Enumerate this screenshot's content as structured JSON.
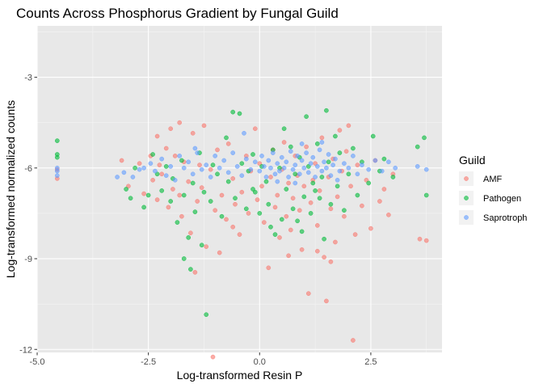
{
  "chart_data": {
    "type": "scatter",
    "title": "Counts Across Phosphorus Gradient by Fungal Guild",
    "xlabel": "Log-transformed Resin P",
    "ylabel": "Log-transformed normalized counts",
    "xlim": [
      -5.0,
      4.1
    ],
    "ylim": [
      -12.1,
      -1.3
    ],
    "x_ticks": [
      -5.0,
      -2.5,
      0.0,
      2.5
    ],
    "x_tick_labels": [
      "-5.0",
      "-2.5",
      "0.0",
      "2.5"
    ],
    "y_ticks": [
      -12,
      -9,
      -6,
      -3
    ],
    "y_tick_labels": [
      "-12",
      "-9",
      "-6",
      "-3"
    ],
    "grid": true,
    "panel_background": "#e8e8e8",
    "legend": {
      "title": "Guild",
      "position": "right"
    },
    "series": [
      {
        "name": "AMF",
        "color": "#f8766d",
        "points": [
          [
            -4.55,
            -6.35
          ],
          [
            -4.55,
            -6.05
          ],
          [
            -3.1,
            -5.75
          ],
          [
            -2.95,
            -6.6
          ],
          [
            -2.7,
            -5.85
          ],
          [
            -2.6,
            -6.85
          ],
          [
            -2.45,
            -5.6
          ],
          [
            -2.4,
            -6.4
          ],
          [
            -2.3,
            -4.95
          ],
          [
            -2.3,
            -7.05
          ],
          [
            -2.25,
            -5.9
          ],
          [
            -2.2,
            -6.2
          ],
          [
            -2.1,
            -5.35
          ],
          [
            -2.05,
            -7.3
          ],
          [
            -2.0,
            -4.7
          ],
          [
            -1.95,
            -6.7
          ],
          [
            -1.9,
            -5.6
          ],
          [
            -1.8,
            -4.5
          ],
          [
            -1.8,
            -6.9
          ],
          [
            -1.75,
            -7.6
          ],
          [
            -1.7,
            -5.8
          ],
          [
            -1.6,
            -6.45
          ],
          [
            -1.55,
            -8.15
          ],
          [
            -1.5,
            -4.85
          ],
          [
            -1.4,
            -7.1
          ],
          [
            -1.35,
            -5.9
          ],
          [
            -1.3,
            -6.65
          ],
          [
            -1.25,
            -4.6
          ],
          [
            -1.2,
            -8.6
          ],
          [
            -1.1,
            -6.05
          ],
          [
            -1.0,
            -7.4
          ],
          [
            -0.95,
            -5.4
          ],
          [
            -0.9,
            -8.8
          ],
          [
            -0.85,
            -6.9
          ],
          [
            -0.75,
            -7.7
          ],
          [
            -0.7,
            -5.2
          ],
          [
            -0.6,
            -6.35
          ],
          [
            -0.55,
            -7.2
          ],
          [
            -0.45,
            -8.2
          ],
          [
            -0.4,
            -6.8
          ],
          [
            -0.3,
            -5.6
          ],
          [
            -0.25,
            -7.5
          ],
          [
            -0.2,
            -6.1
          ],
          [
            -0.1,
            -4.7
          ],
          [
            -0.05,
            -7.05
          ],
          [
            0.0,
            -5.85
          ],
          [
            0.05,
            -6.6
          ],
          [
            0.1,
            -7.8
          ],
          [
            0.2,
            -9.3
          ],
          [
            0.25,
            -6.3
          ],
          [
            0.3,
            -5.4
          ],
          [
            0.35,
            -7.3
          ],
          [
            0.4,
            -6.9
          ],
          [
            0.45,
            -8.3
          ],
          [
            0.5,
            -6.05
          ],
          [
            0.55,
            -5.15
          ],
          [
            0.6,
            -7.6
          ],
          [
            0.65,
            -6.5
          ],
          [
            0.7,
            -8.05
          ],
          [
            0.75,
            -7.0
          ],
          [
            0.8,
            -5.6
          ],
          [
            0.85,
            -6.25
          ],
          [
            0.9,
            -7.4
          ],
          [
            0.95,
            -8.7
          ],
          [
            1.0,
            -6.6
          ],
          [
            1.05,
            -5.3
          ],
          [
            1.1,
            -10.15
          ],
          [
            1.15,
            -7.15
          ],
          [
            1.2,
            -6.4
          ],
          [
            1.25,
            -5.85
          ],
          [
            1.3,
            -7.9
          ],
          [
            1.35,
            -6.75
          ],
          [
            1.4,
            -5.0
          ],
          [
            1.45,
            -8.95
          ],
          [
            1.5,
            -10.4
          ],
          [
            1.55,
            -6.3
          ],
          [
            1.6,
            -7.35
          ],
          [
            1.65,
            -5.7
          ],
          [
            1.7,
            -8.45
          ],
          [
            1.75,
            -6.95
          ],
          [
            1.8,
            -4.75
          ],
          [
            1.85,
            -6.1
          ],
          [
            1.9,
            -7.6
          ],
          [
            1.95,
            -5.45
          ],
          [
            2.0,
            -4.6
          ],
          [
            2.05,
            -6.6
          ],
          [
            2.1,
            -11.7
          ],
          [
            2.15,
            -8.2
          ],
          [
            2.2,
            -5.9
          ],
          [
            2.3,
            -7.25
          ],
          [
            2.4,
            -6.4
          ],
          [
            2.5,
            -8.0
          ],
          [
            2.6,
            -5.75
          ],
          [
            2.7,
            -7.1
          ],
          [
            2.8,
            -6.7
          ],
          [
            2.9,
            -7.55
          ],
          [
            3.0,
            -6.2
          ],
          [
            3.6,
            -8.35
          ],
          [
            3.75,
            -8.4
          ],
          [
            -1.05,
            -12.25
          ],
          [
            -1.45,
            -9.45
          ],
          [
            0.65,
            -8.9
          ],
          [
            1.3,
            -8.75
          ],
          [
            -0.6,
            -7.95
          ],
          [
            1.6,
            -9.1
          ]
        ]
      },
      {
        "name": "Pathogen",
        "color": "#00ba38",
        "points": [
          [
            -4.55,
            -5.1
          ],
          [
            -4.55,
            -5.55
          ],
          [
            -4.55,
            -5.65
          ],
          [
            -3.0,
            -6.7
          ],
          [
            -2.9,
            -7.0
          ],
          [
            -2.8,
            -6.0
          ],
          [
            -2.6,
            -7.3
          ],
          [
            -2.5,
            -6.9
          ],
          [
            -2.4,
            -5.55
          ],
          [
            -2.3,
            -6.2
          ],
          [
            -2.2,
            -6.75
          ],
          [
            -2.1,
            -5.95
          ],
          [
            -2.0,
            -7.1
          ],
          [
            -1.95,
            -6.35
          ],
          [
            -1.85,
            -7.8
          ],
          [
            -1.75,
            -5.75
          ],
          [
            -1.7,
            -6.9
          ],
          [
            -1.6,
            -8.3
          ],
          [
            -1.5,
            -6.5
          ],
          [
            -1.45,
            -7.45
          ],
          [
            -1.35,
            -5.5
          ],
          [
            -1.3,
            -8.55
          ],
          [
            -1.25,
            -6.8
          ],
          [
            -1.2,
            -10.85
          ],
          [
            -1.1,
            -7.1
          ],
          [
            -1.05,
            -5.9
          ],
          [
            -0.95,
            -6.2
          ],
          [
            -0.85,
            -7.6
          ],
          [
            -0.75,
            -5.0
          ],
          [
            -0.7,
            -6.45
          ],
          [
            -0.6,
            -4.15
          ],
          [
            -0.55,
            -7.0
          ],
          [
            -0.45,
            -4.2
          ],
          [
            -0.4,
            -5.85
          ],
          [
            -0.3,
            -7.35
          ],
          [
            -0.25,
            -6.1
          ],
          [
            -0.15,
            -5.55
          ],
          [
            -0.1,
            -6.8
          ],
          [
            0.0,
            -7.5
          ],
          [
            0.05,
            -5.95
          ],
          [
            0.15,
            -6.45
          ],
          [
            0.2,
            -7.2
          ],
          [
            0.3,
            -5.4
          ],
          [
            0.35,
            -8.2
          ],
          [
            0.45,
            -6.0
          ],
          [
            0.5,
            -7.7
          ],
          [
            0.55,
            -4.7
          ],
          [
            0.6,
            -6.7
          ],
          [
            0.7,
            -5.3
          ],
          [
            0.75,
            -7.35
          ],
          [
            0.8,
            -6.2
          ],
          [
            0.9,
            -5.65
          ],
          [
            0.95,
            -8.1
          ],
          [
            1.0,
            -6.95
          ],
          [
            1.05,
            -4.3
          ],
          [
            1.1,
            -5.95
          ],
          [
            1.15,
            -7.5
          ],
          [
            1.2,
            -6.5
          ],
          [
            1.3,
            -5.2
          ],
          [
            1.35,
            -7.0
          ],
          [
            1.4,
            -6.3
          ],
          [
            1.45,
            -8.35
          ],
          [
            1.5,
            -4.1
          ],
          [
            1.55,
            -5.8
          ],
          [
            1.6,
            -7.2
          ],
          [
            1.7,
            -4.95
          ],
          [
            1.75,
            -6.6
          ],
          [
            1.8,
            -5.5
          ],
          [
            1.9,
            -7.4
          ],
          [
            2.0,
            -6.2
          ],
          [
            2.1,
            -5.35
          ],
          [
            2.2,
            -6.9
          ],
          [
            2.3,
            -5.8
          ],
          [
            2.45,
            -6.5
          ],
          [
            2.55,
            -4.95
          ],
          [
            2.7,
            -6.1
          ],
          [
            2.8,
            -5.7
          ],
          [
            3.0,
            -6.3
          ],
          [
            3.55,
            -5.3
          ],
          [
            3.7,
            -5.0
          ],
          [
            3.75,
            -6.9
          ],
          [
            -1.7,
            -9.0
          ],
          [
            -1.55,
            -9.35
          ],
          [
            0.25,
            -7.95
          ],
          [
            0.85,
            -7.75
          ],
          [
            -0.15,
            -6.7
          ],
          [
            1.25,
            -6.75
          ]
        ]
      },
      {
        "name": "Saprotroph",
        "color": "#619cff",
        "points": [
          [
            -4.55,
            -6.0
          ],
          [
            -4.55,
            -6.25
          ],
          [
            -4.55,
            -6.1
          ],
          [
            -3.2,
            -6.3
          ],
          [
            -3.05,
            -6.15
          ],
          [
            -2.85,
            -6.3
          ],
          [
            -2.7,
            -6.05
          ],
          [
            -2.6,
            -6.0
          ],
          [
            -2.45,
            -5.85
          ],
          [
            -2.35,
            -6.1
          ],
          [
            -2.2,
            -5.7
          ],
          [
            -2.1,
            -6.25
          ],
          [
            -2.0,
            -5.95
          ],
          [
            -1.9,
            -6.4
          ],
          [
            -1.8,
            -5.6
          ],
          [
            -1.7,
            -6.0
          ],
          [
            -1.6,
            -5.8
          ],
          [
            -1.5,
            -6.2
          ],
          [
            -1.4,
            -5.5
          ],
          [
            -1.3,
            -6.05
          ],
          [
            -1.2,
            -5.9
          ],
          [
            -1.1,
            -6.3
          ],
          [
            -1.0,
            -5.6
          ],
          [
            -0.9,
            -6.0
          ],
          [
            -0.8,
            -5.75
          ],
          [
            -0.7,
            -6.15
          ],
          [
            -0.6,
            -5.5
          ],
          [
            -0.5,
            -5.95
          ],
          [
            -0.4,
            -6.25
          ],
          [
            -0.3,
            -5.7
          ],
          [
            -0.2,
            -6.05
          ],
          [
            -0.1,
            -5.8
          ],
          [
            0.0,
            -6.1
          ],
          [
            0.05,
            -5.6
          ],
          [
            0.1,
            -5.95
          ],
          [
            0.15,
            -6.3
          ],
          [
            0.2,
            -5.75
          ],
          [
            0.25,
            -6.0
          ],
          [
            0.3,
            -5.5
          ],
          [
            0.35,
            -6.2
          ],
          [
            0.4,
            -5.85
          ],
          [
            0.45,
            -6.1
          ],
          [
            0.5,
            -5.65
          ],
          [
            0.55,
            -6.0
          ],
          [
            0.6,
            -5.8
          ],
          [
            0.65,
            -6.3
          ],
          [
            0.7,
            -5.45
          ],
          [
            0.75,
            -6.05
          ],
          [
            0.8,
            -5.9
          ],
          [
            0.85,
            -5.6
          ],
          [
            0.9,
            -6.2
          ],
          [
            0.95,
            -5.75
          ],
          [
            1.0,
            -6.0
          ],
          [
            1.05,
            -5.5
          ],
          [
            1.1,
            -6.15
          ],
          [
            1.15,
            -5.85
          ],
          [
            1.2,
            -5.65
          ],
          [
            1.25,
            -6.3
          ],
          [
            1.3,
            -5.95
          ],
          [
            1.35,
            -5.4
          ],
          [
            1.4,
            -6.1
          ],
          [
            1.45,
            -5.8
          ],
          [
            1.5,
            -6.0
          ],
          [
            1.55,
            -5.55
          ],
          [
            1.6,
            -6.25
          ],
          [
            1.65,
            -5.9
          ],
          [
            1.7,
            -5.7
          ],
          [
            1.8,
            -6.1
          ],
          [
            1.9,
            -5.85
          ],
          [
            2.0,
            -6.0
          ],
          [
            2.1,
            -5.6
          ],
          [
            2.2,
            -6.2
          ],
          [
            2.3,
            -5.9
          ],
          [
            2.45,
            -6.05
          ],
          [
            2.6,
            -5.75
          ],
          [
            2.75,
            -6.1
          ],
          [
            2.9,
            -5.8
          ],
          [
            3.05,
            -6.0
          ],
          [
            3.55,
            -5.95
          ],
          [
            3.75,
            -6.05
          ],
          [
            -0.35,
            -4.85
          ],
          [
            0.95,
            -5.2
          ],
          [
            1.4,
            -5.15
          ],
          [
            0.4,
            -6.45
          ],
          [
            1.75,
            -6.4
          ],
          [
            -1.45,
            -5.35
          ],
          [
            0.8,
            -6.5
          ]
        ]
      }
    ]
  }
}
